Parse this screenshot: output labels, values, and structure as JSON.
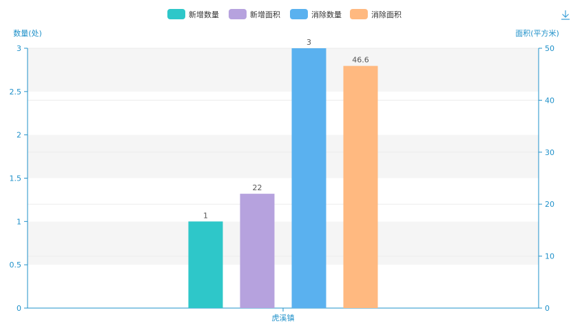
{
  "chart_data": {
    "type": "bar",
    "categories": [
      "虎溪镇"
    ],
    "series": [
      {
        "name": "新增数量",
        "axis": "left",
        "values": [
          1
        ],
        "color": "#2ec7c9",
        "label": "1"
      },
      {
        "name": "新增面积",
        "axis": "right",
        "values": [
          22
        ],
        "color": "#b6a2de",
        "label": "22"
      },
      {
        "name": "消除数量",
        "axis": "left",
        "values": [
          3
        ],
        "color": "#5ab1ef",
        "label": "3"
      },
      {
        "name": "消除面积",
        "axis": "right",
        "values": [
          46.6
        ],
        "color": "#ffb980",
        "label": "46.6"
      }
    ],
    "left_axis": {
      "label": "数量(处)",
      "ylim": [
        0,
        3
      ],
      "ticks": [
        "0",
        "0.5",
        "1",
        "1.5",
        "2",
        "2.5",
        "3"
      ],
      "tick_values": [
        0,
        0.5,
        1,
        1.5,
        2,
        2.5,
        3
      ]
    },
    "right_axis": {
      "label": "面积(平方米)",
      "ylim": [
        0,
        50
      ],
      "ticks": [
        "0",
        "10",
        "20",
        "30",
        "40",
        "50"
      ],
      "tick_values": [
        0,
        10,
        20,
        30,
        40,
        50
      ]
    },
    "legend_position": "top-center",
    "axis_color": "#1e90c9",
    "grid": "horizontal bands"
  },
  "toolbar": {
    "download_icon": "download-icon"
  }
}
